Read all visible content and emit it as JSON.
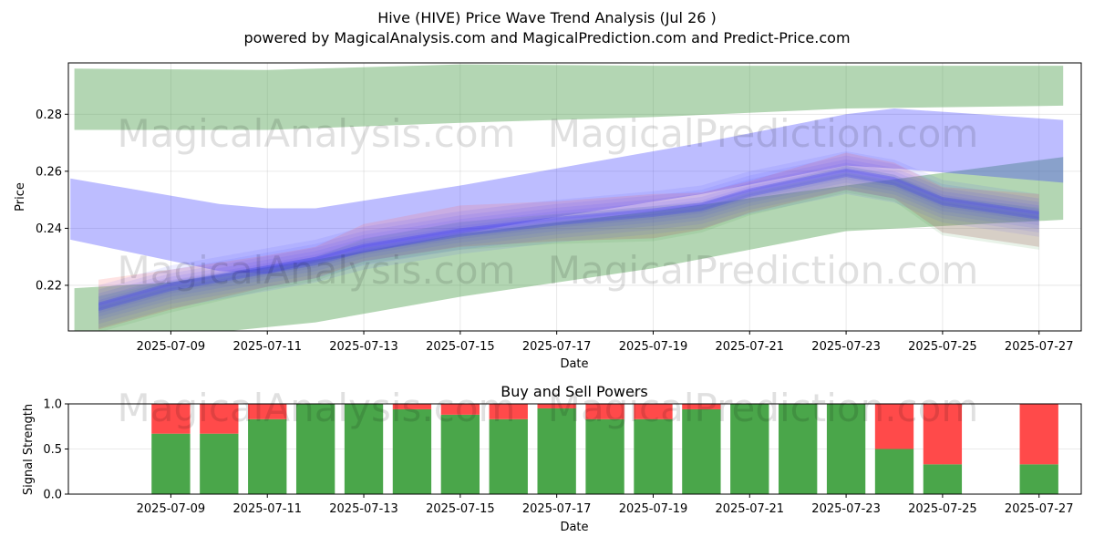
{
  "title": "Hive (HIVE) Price Wave Trend Analysis (Jul 26 )",
  "subtitle": "powered by MagicalAnalysis.com and MagicalPrediction.com and Predict-Price.com",
  "watermarks": [
    "MagicalAnalysis.com",
    "MagicalPrediction.com"
  ],
  "colors": {
    "band_green": "#4a9e4a",
    "band_blue": "#3333ff",
    "wave_red": "#ff6666",
    "buy": "#4aa64a",
    "sell": "#ff4a4a"
  },
  "chart_data": [
    {
      "type": "line",
      "title": "",
      "xlabel": "Date",
      "ylabel": "Price",
      "x_ticks": [
        "2025-07-09",
        "2025-07-11",
        "2025-07-13",
        "2025-07-15",
        "2025-07-17",
        "2025-07-19",
        "2025-07-21",
        "2025-07-23",
        "2025-07-25",
        "2025-07-27"
      ],
      "y_ticks": [
        "0.22",
        "0.24",
        "0.26",
        "0.28"
      ],
      "xlim": [
        "2025-07-06T21:00",
        "2025-07-27T21:00"
      ],
      "ylim": [
        0.204,
        0.298
      ],
      "grid": true,
      "series": [
        {
          "kind": "band",
          "color": "green",
          "x": [
            "2025-07-07",
            "2025-07-11",
            "2025-07-15",
            "2025-07-19",
            "2025-07-23",
            "2025-07-27T12:00"
          ],
          "upper": [
            0.296,
            0.2955,
            0.2975,
            0.297,
            0.297,
            0.297
          ],
          "lower": [
            0.2745,
            0.2745,
            0.277,
            0.279,
            0.282,
            0.283
          ]
        },
        {
          "kind": "band",
          "color": "green",
          "x": [
            "2025-07-07",
            "2025-07-09",
            "2025-07-12",
            "2025-07-15",
            "2025-07-19",
            "2025-07-23",
            "2025-07-27T12:00"
          ],
          "upper": [
            0.219,
            0.221,
            0.229,
            0.238,
            0.246,
            0.255,
            0.265
          ],
          "lower": [
            0.201,
            0.202,
            0.207,
            0.216,
            0.226,
            0.239,
            0.243
          ]
        },
        {
          "kind": "band",
          "color": "blue",
          "x": [
            "2025-07-06T22:00",
            "2025-07-10",
            "2025-07-11",
            "2025-07-12",
            "2025-07-15",
            "2025-07-17",
            "2025-07-20",
            "2025-07-23",
            "2025-07-24",
            "2025-07-27T12:00"
          ],
          "upper": [
            0.2575,
            0.2485,
            0.247,
            0.247,
            0.255,
            0.261,
            0.27,
            0.28,
            0.282,
            0.278
          ],
          "lower": [
            0.236,
            0.225,
            0.224,
            0.228,
            0.238,
            0.244,
            0.252,
            0.262,
            0.261,
            0.256
          ]
        },
        {
          "kind": "wave_bundle",
          "color": "blue",
          "x": [
            "2025-07-07T12:00",
            "2025-07-09",
            "2025-07-11",
            "2025-07-12",
            "2025-07-13",
            "2025-07-15",
            "2025-07-17",
            "2025-07-19",
            "2025-07-20",
            "2025-07-21",
            "2025-07-23",
            "2025-07-24",
            "2025-07-25",
            "2025-07-27"
          ],
          "upper": [
            0.222,
            0.2255,
            0.2305,
            0.2335,
            0.2415,
            0.248,
            0.2495,
            0.252,
            0.2525,
            0.2565,
            0.2665,
            0.263,
            0.2545,
            0.252
          ],
          "mid": [
            0.2125,
            0.2195,
            0.2255,
            0.2285,
            0.233,
            0.2385,
            0.2425,
            0.2455,
            0.2475,
            0.2525,
            0.2595,
            0.2565,
            0.2495,
            0.2445
          ],
          "lower": [
            0.2045,
            0.2115,
            0.2195,
            0.2225,
            0.2285,
            0.2335,
            0.2355,
            0.2365,
            0.2395,
            0.2455,
            0.2535,
            0.2505,
            0.2385,
            0.2335
          ]
        }
      ]
    },
    {
      "type": "bar",
      "stacked": true,
      "title": "Buy and Sell Powers",
      "xlabel": "Date",
      "ylabel": "Signal Strength",
      "x_ticks": [
        "2025-07-09",
        "2025-07-11",
        "2025-07-13",
        "2025-07-15",
        "2025-07-17",
        "2025-07-19",
        "2025-07-21",
        "2025-07-23",
        "2025-07-25",
        "2025-07-27"
      ],
      "y_ticks": [
        "0.0",
        "0.5",
        "1.0"
      ],
      "ylim": [
        0,
        1
      ],
      "categories": [
        "2025-07-09",
        "2025-07-10",
        "2025-07-11",
        "2025-07-12",
        "2025-07-13",
        "2025-07-14",
        "2025-07-15",
        "2025-07-16",
        "2025-07-17",
        "2025-07-18",
        "2025-07-19",
        "2025-07-20",
        "2025-07-21",
        "2025-07-22",
        "2025-07-23",
        "2025-07-24",
        "2025-07-25",
        "2025-07-27"
      ],
      "series": [
        {
          "name": "buy",
          "values": [
            0.67,
            0.67,
            0.83,
            1.0,
            1.0,
            0.94,
            0.88,
            0.83,
            0.95,
            0.83,
            0.83,
            0.94,
            1.0,
            1.0,
            1.0,
            0.5,
            0.33,
            0.33
          ]
        },
        {
          "name": "sell",
          "values": [
            0.33,
            0.33,
            0.17,
            0.0,
            0.0,
            0.06,
            0.12,
            0.17,
            0.05,
            0.17,
            0.17,
            0.06,
            0.0,
            0.0,
            0.0,
            0.5,
            0.67,
            0.67
          ]
        }
      ]
    }
  ]
}
